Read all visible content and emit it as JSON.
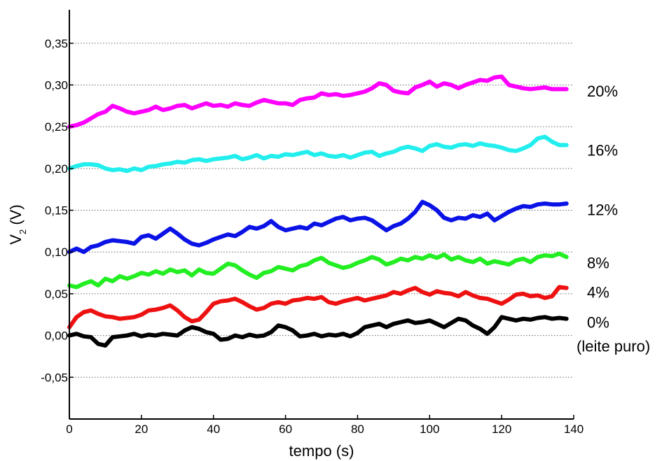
{
  "chart_data": {
    "type": "line",
    "xlabel": "tempo (s)",
    "ylabel_main": "V",
    "ylabel_sub": "2",
    "ylabel_unit": " (V)",
    "xlim": [
      0,
      140
    ],
    "ylim": [
      -0.1,
      0.39
    ],
    "x_ticks": [
      {
        "value": 0,
        "label": "0"
      },
      {
        "value": 20,
        "label": "20"
      },
      {
        "value": 40,
        "label": "40"
      },
      {
        "value": 60,
        "label": "60"
      },
      {
        "value": 80,
        "label": "80"
      },
      {
        "value": 100,
        "label": "100"
      },
      {
        "value": 120,
        "label": "120"
      },
      {
        "value": 140,
        "label": "140"
      }
    ],
    "y_ticks": [
      {
        "value": -0.05,
        "label": "-0,05"
      },
      {
        "value": 0.0,
        "label": "0,00"
      },
      {
        "value": 0.05,
        "label": "0,05"
      },
      {
        "value": 0.1,
        "label": "0,10"
      },
      {
        "value": 0.15,
        "label": "0,15"
      },
      {
        "value": 0.2,
        "label": "0,20"
      },
      {
        "value": 0.25,
        "label": "0,25"
      },
      {
        "value": 0.3,
        "label": "0,30"
      },
      {
        "value": 0.35,
        "label": "0,35"
      }
    ],
    "grid": "horizontal-dotted",
    "series": [
      {
        "label_lines": [
          "20%"
        ],
        "label_y": 0.293,
        "color": "#ff00ff",
        "x": [
          0,
          2,
          4,
          6,
          8,
          10,
          12,
          14,
          16,
          18,
          20,
          22,
          24,
          26,
          28,
          30,
          32,
          34,
          36,
          38,
          40,
          42,
          44,
          46,
          48,
          50,
          52,
          54,
          56,
          58,
          60,
          62,
          64,
          66,
          68,
          70,
          72,
          74,
          76,
          78,
          80,
          82,
          84,
          86,
          88,
          90,
          92,
          94,
          96,
          98,
          100,
          102,
          104,
          106,
          108,
          110,
          112,
          114,
          116,
          118,
          120,
          122,
          124,
          126,
          128,
          130,
          132,
          134,
          136,
          138
        ],
        "y": [
          0.25,
          0.252,
          0.255,
          0.26,
          0.265,
          0.268,
          0.275,
          0.272,
          0.268,
          0.266,
          0.268,
          0.27,
          0.274,
          0.27,
          0.272,
          0.275,
          0.276,
          0.272,
          0.275,
          0.278,
          0.275,
          0.276,
          0.274,
          0.278,
          0.276,
          0.275,
          0.279,
          0.282,
          0.28,
          0.278,
          0.278,
          0.276,
          0.282,
          0.284,
          0.285,
          0.29,
          0.288,
          0.289,
          0.287,
          0.288,
          0.29,
          0.292,
          0.296,
          0.302,
          0.3,
          0.293,
          0.291,
          0.29,
          0.297,
          0.3,
          0.304,
          0.298,
          0.302,
          0.3,
          0.296,
          0.3,
          0.303,
          0.306,
          0.305,
          0.309,
          0.31,
          0.3,
          0.298,
          0.296,
          0.295,
          0.296,
          0.297,
          0.295,
          0.295,
          0.295
        ]
      },
      {
        "label_lines": [
          "16%"
        ],
        "label_y": 0.222,
        "color": "#22eeee",
        "x": [
          0,
          2,
          4,
          6,
          8,
          10,
          12,
          14,
          16,
          18,
          20,
          22,
          24,
          26,
          28,
          30,
          32,
          34,
          36,
          38,
          40,
          42,
          44,
          46,
          48,
          50,
          52,
          54,
          56,
          58,
          60,
          62,
          64,
          66,
          68,
          70,
          72,
          74,
          76,
          78,
          80,
          82,
          84,
          86,
          88,
          90,
          92,
          94,
          96,
          98,
          100,
          102,
          104,
          106,
          108,
          110,
          112,
          114,
          116,
          118,
          120,
          122,
          124,
          126,
          128,
          130,
          132,
          134,
          136,
          138
        ],
        "y": [
          0.2,
          0.203,
          0.205,
          0.205,
          0.204,
          0.2,
          0.198,
          0.199,
          0.197,
          0.2,
          0.198,
          0.202,
          0.203,
          0.205,
          0.206,
          0.208,
          0.207,
          0.21,
          0.211,
          0.209,
          0.211,
          0.212,
          0.213,
          0.215,
          0.211,
          0.213,
          0.216,
          0.212,
          0.215,
          0.214,
          0.217,
          0.216,
          0.218,
          0.22,
          0.216,
          0.218,
          0.215,
          0.214,
          0.216,
          0.213,
          0.216,
          0.219,
          0.22,
          0.215,
          0.218,
          0.22,
          0.224,
          0.226,
          0.224,
          0.221,
          0.227,
          0.229,
          0.226,
          0.225,
          0.228,
          0.229,
          0.227,
          0.23,
          0.228,
          0.227,
          0.225,
          0.222,
          0.221,
          0.224,
          0.228,
          0.236,
          0.238,
          0.232,
          0.228,
          0.228
        ]
      },
      {
        "label_lines": [
          "12%"
        ],
        "label_y": 0.151,
        "color": "#0a12e6",
        "x": [
          0,
          2,
          4,
          6,
          8,
          10,
          12,
          14,
          16,
          18,
          20,
          22,
          24,
          26,
          28,
          30,
          32,
          34,
          36,
          38,
          40,
          42,
          44,
          46,
          48,
          50,
          52,
          54,
          56,
          58,
          60,
          62,
          64,
          66,
          68,
          70,
          72,
          74,
          76,
          78,
          80,
          82,
          84,
          86,
          88,
          90,
          92,
          94,
          96,
          98,
          100,
          102,
          104,
          106,
          108,
          110,
          112,
          114,
          116,
          118,
          120,
          122,
          124,
          126,
          128,
          130,
          132,
          134,
          136,
          138
        ],
        "y": [
          0.1,
          0.104,
          0.1,
          0.106,
          0.108,
          0.112,
          0.114,
          0.113,
          0.112,
          0.11,
          0.118,
          0.12,
          0.116,
          0.122,
          0.128,
          0.122,
          0.115,
          0.11,
          0.108,
          0.111,
          0.115,
          0.118,
          0.121,
          0.119,
          0.124,
          0.13,
          0.128,
          0.131,
          0.137,
          0.13,
          0.126,
          0.128,
          0.13,
          0.128,
          0.134,
          0.132,
          0.136,
          0.14,
          0.142,
          0.138,
          0.14,
          0.141,
          0.138,
          0.132,
          0.126,
          0.131,
          0.134,
          0.14,
          0.148,
          0.16,
          0.156,
          0.15,
          0.141,
          0.138,
          0.141,
          0.14,
          0.144,
          0.142,
          0.146,
          0.138,
          0.143,
          0.148,
          0.152,
          0.155,
          0.154,
          0.157,
          0.158,
          0.157,
          0.157,
          0.158
        ]
      },
      {
        "label_lines": [
          "8%"
        ],
        "label_y": 0.087,
        "color": "#22ee22",
        "x": [
          0,
          2,
          4,
          6,
          8,
          10,
          12,
          14,
          16,
          18,
          20,
          22,
          24,
          26,
          28,
          30,
          32,
          34,
          36,
          38,
          40,
          42,
          44,
          46,
          48,
          50,
          52,
          54,
          56,
          58,
          60,
          62,
          64,
          66,
          68,
          70,
          72,
          74,
          76,
          78,
          80,
          82,
          84,
          86,
          88,
          90,
          92,
          94,
          96,
          98,
          100,
          102,
          104,
          106,
          108,
          110,
          112,
          114,
          116,
          118,
          120,
          122,
          124,
          126,
          128,
          130,
          132,
          134,
          136,
          138
        ],
        "y": [
          0.06,
          0.058,
          0.062,
          0.065,
          0.06,
          0.068,
          0.065,
          0.071,
          0.068,
          0.071,
          0.075,
          0.073,
          0.077,
          0.074,
          0.079,
          0.076,
          0.078,
          0.072,
          0.079,
          0.075,
          0.074,
          0.08,
          0.086,
          0.084,
          0.078,
          0.073,
          0.069,
          0.075,
          0.077,
          0.082,
          0.08,
          0.078,
          0.083,
          0.085,
          0.09,
          0.093,
          0.087,
          0.084,
          0.081,
          0.083,
          0.087,
          0.09,
          0.094,
          0.091,
          0.085,
          0.088,
          0.092,
          0.09,
          0.094,
          0.092,
          0.096,
          0.093,
          0.097,
          0.091,
          0.094,
          0.09,
          0.088,
          0.092,
          0.086,
          0.089,
          0.087,
          0.085,
          0.09,
          0.092,
          0.088,
          0.094,
          0.096,
          0.095,
          0.098,
          0.094
        ]
      },
      {
        "label_lines": [
          "4%"
        ],
        "label_y": 0.052,
        "color": "#ee1111",
        "x": [
          0,
          2,
          4,
          6,
          8,
          10,
          12,
          14,
          16,
          18,
          20,
          22,
          24,
          26,
          28,
          30,
          32,
          34,
          36,
          38,
          40,
          42,
          44,
          46,
          48,
          50,
          52,
          54,
          56,
          58,
          60,
          62,
          64,
          66,
          68,
          70,
          72,
          74,
          76,
          78,
          80,
          82,
          84,
          86,
          88,
          90,
          92,
          94,
          96,
          98,
          100,
          102,
          104,
          106,
          108,
          110,
          112,
          114,
          116,
          118,
          120,
          122,
          124,
          126,
          128,
          130,
          132,
          134,
          136,
          138
        ],
        "y": [
          0.01,
          0.022,
          0.028,
          0.03,
          0.026,
          0.023,
          0.022,
          0.02,
          0.021,
          0.022,
          0.025,
          0.03,
          0.031,
          0.033,
          0.036,
          0.03,
          0.022,
          0.017,
          0.019,
          0.028,
          0.038,
          0.041,
          0.042,
          0.044,
          0.04,
          0.035,
          0.031,
          0.033,
          0.038,
          0.04,
          0.038,
          0.042,
          0.043,
          0.045,
          0.044,
          0.046,
          0.04,
          0.038,
          0.041,
          0.043,
          0.045,
          0.042,
          0.044,
          0.046,
          0.048,
          0.052,
          0.05,
          0.054,
          0.057,
          0.052,
          0.049,
          0.053,
          0.051,
          0.05,
          0.047,
          0.052,
          0.048,
          0.045,
          0.044,
          0.041,
          0.038,
          0.043,
          0.049,
          0.05,
          0.047,
          0.048,
          0.045,
          0.047,
          0.058,
          0.057
        ]
      },
      {
        "label_lines": [
          "0%",
          "(leite puro)"
        ],
        "label_y": 0.016,
        "color": "#000000",
        "x": [
          0,
          2,
          4,
          6,
          8,
          10,
          12,
          14,
          16,
          18,
          20,
          22,
          24,
          26,
          28,
          30,
          32,
          34,
          36,
          38,
          40,
          42,
          44,
          46,
          48,
          50,
          52,
          54,
          56,
          58,
          60,
          62,
          64,
          66,
          68,
          70,
          72,
          74,
          76,
          78,
          80,
          82,
          84,
          86,
          88,
          90,
          92,
          94,
          96,
          98,
          100,
          102,
          104,
          106,
          108,
          110,
          112,
          114,
          116,
          118,
          120,
          122,
          124,
          126,
          128,
          130,
          132,
          134,
          136,
          138
        ],
        "y": [
          0.0,
          0.002,
          -0.001,
          -0.002,
          -0.01,
          -0.012,
          -0.002,
          -0.001,
          0.0,
          0.002,
          -0.001,
          0.001,
          0.0,
          0.002,
          0.001,
          0.0,
          0.006,
          0.01,
          0.008,
          0.004,
          0.002,
          -0.005,
          -0.004,
          0.0,
          -0.002,
          0.001,
          -0.001,
          0.0,
          0.004,
          0.012,
          0.01,
          0.006,
          -0.001,
          0.0,
          0.002,
          -0.001,
          0.001,
          0.0,
          0.002,
          -0.001,
          0.003,
          0.01,
          0.012,
          0.014,
          0.01,
          0.014,
          0.016,
          0.018,
          0.015,
          0.016,
          0.018,
          0.014,
          0.01,
          0.015,
          0.02,
          0.018,
          0.012,
          0.008,
          0.002,
          0.01,
          0.022,
          0.02,
          0.018,
          0.02,
          0.019,
          0.021,
          0.022,
          0.02,
          0.021,
          0.02
        ]
      }
    ]
  }
}
